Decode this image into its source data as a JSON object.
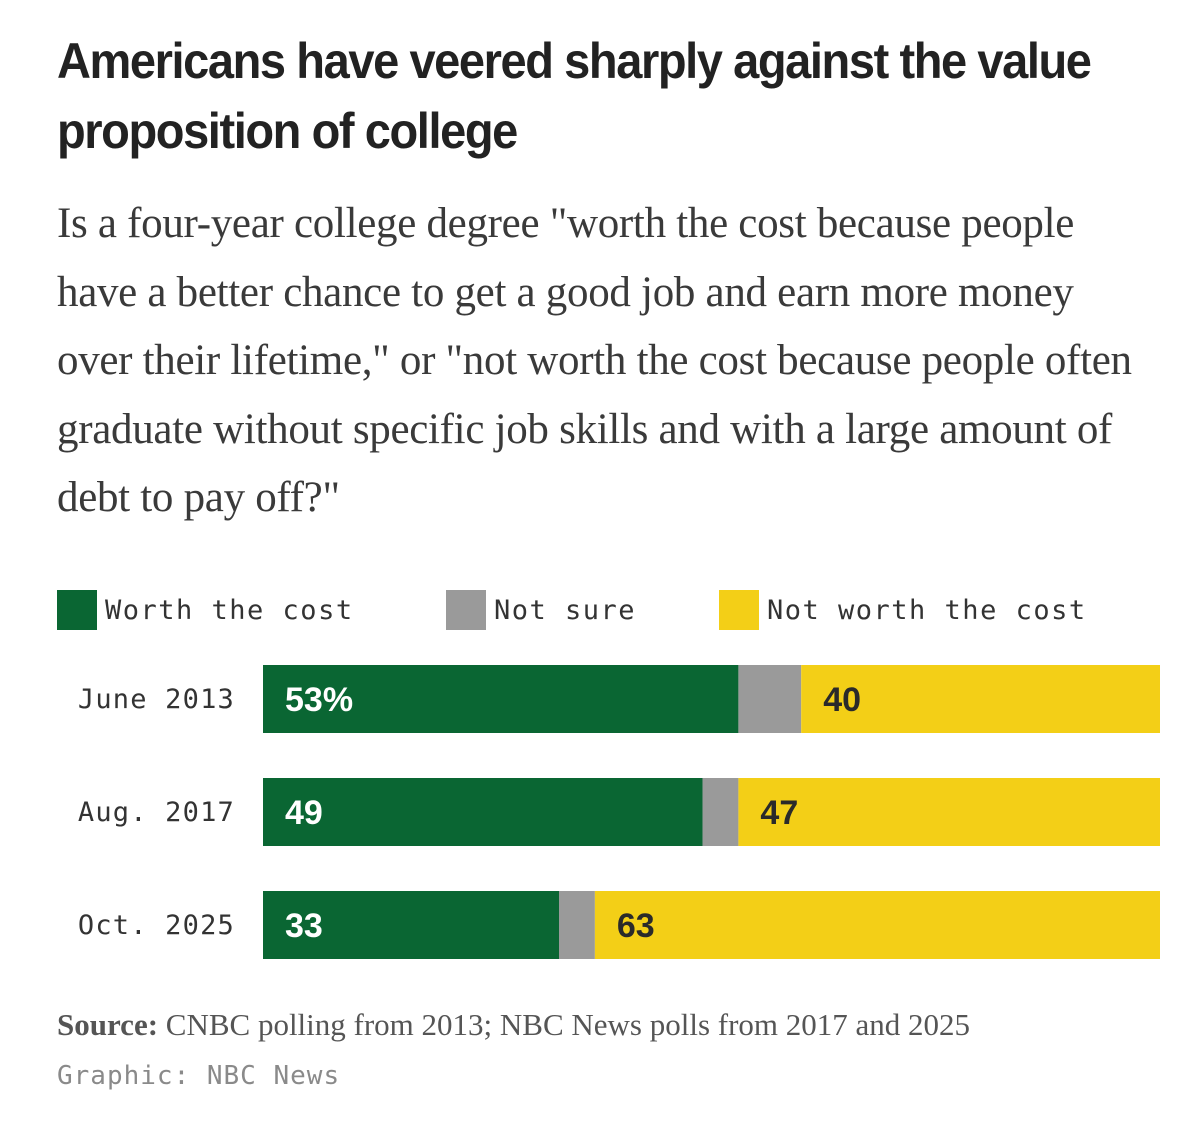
{
  "title": "Americans have veered sharply against the value proposition of college",
  "subtitle": "Is a four-year college degree \"worth the cost because people have a better chance to get a good job and earn more money over their lifetime,\" or \"not worth the cost because people often graduate without specific job skills and with a large amount of debt to pay off?\"",
  "colors": {
    "worth": "#0a6633",
    "not_sure": "#9a9a9a",
    "not_worth": "#f3cf17",
    "worth_label": "#ffffff",
    "not_worth_label": "#2a2a2a"
  },
  "legend": [
    {
      "label": "Worth the cost",
      "color": "#0a6633"
    },
    {
      "label": "Not sure",
      "color": "#9a9a9a"
    },
    {
      "label": "Not worth the cost",
      "color": "#f3cf17"
    }
  ],
  "chart_data": {
    "type": "bar",
    "orientation": "horizontal",
    "stacked": true,
    "categories": [
      "June 2013",
      "Aug. 2017",
      "Oct. 2025"
    ],
    "series": [
      {
        "name": "Worth the cost",
        "values": [
          53,
          49,
          33
        ],
        "labels": [
          "53%",
          "49",
          "33"
        ]
      },
      {
        "name": "Not sure",
        "values": [
          7,
          4,
          4
        ],
        "labels": [
          "",
          "",
          ""
        ]
      },
      {
        "name": "Not worth the cost",
        "values": [
          40,
          47,
          63
        ],
        "labels": [
          "40",
          "47",
          "63"
        ]
      }
    ],
    "xlim": [
      0,
      100
    ],
    "grid": false,
    "legend_position": "top"
  },
  "source": {
    "lead": "Source:",
    "text": " CNBC polling from 2013; NBC News polls from 2017 and 2025"
  },
  "credit": "Graphic: NBC News"
}
